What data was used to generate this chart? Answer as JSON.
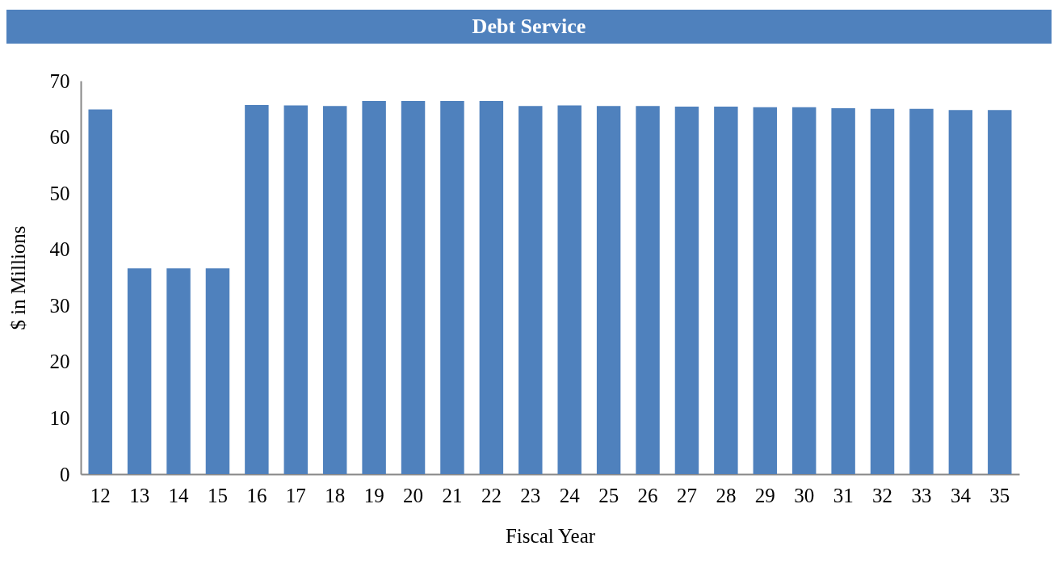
{
  "chart_data": {
    "type": "bar",
    "title": "Debt Service",
    "xlabel": "Fiscal Year",
    "ylabel": "$ in Millions",
    "categories": [
      "12",
      "13",
      "14",
      "15",
      "16",
      "17",
      "18",
      "19",
      "20",
      "21",
      "22",
      "23",
      "24",
      "25",
      "26",
      "27",
      "28",
      "29",
      "30",
      "31",
      "32",
      "33",
      "34",
      "35"
    ],
    "values": [
      64.9,
      36.6,
      36.6,
      36.6,
      65.7,
      65.6,
      65.5,
      66.4,
      66.4,
      66.4,
      66.4,
      65.5,
      65.6,
      65.5,
      65.5,
      65.4,
      65.4,
      65.3,
      65.3,
      65.1,
      65.0,
      65.0,
      64.8,
      64.8
    ],
    "color": "#4f81bd",
    "ylim": [
      0,
      70
    ],
    "yticks": [
      0,
      10,
      20,
      30,
      40,
      50,
      60,
      70
    ],
    "grid": false
  }
}
